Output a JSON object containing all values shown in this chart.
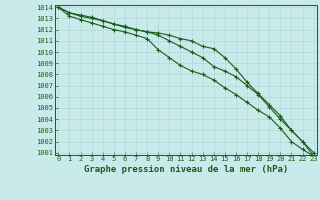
{
  "x": [
    0,
    1,
    2,
    3,
    4,
    5,
    6,
    7,
    8,
    9,
    10,
    11,
    12,
    13,
    14,
    15,
    16,
    17,
    18,
    19,
    20,
    21,
    22,
    23
  ],
  "series": [
    [
      1014,
      1013.5,
      1013.2,
      1013.0,
      1012.8,
      1012.5,
      1012.3,
      1012.0,
      1011.8,
      1011.5,
      1011.0,
      1010.5,
      1010.0,
      1009.5,
      1008.7,
      1008.3,
      1007.8,
      1007.0,
      1006.2,
      1005.1,
      1004.0,
      1003.0,
      1002.0,
      1001.0
    ],
    [
      1014,
      1013.2,
      1012.9,
      1012.6,
      1012.3,
      1012.0,
      1011.8,
      1011.5,
      1011.2,
      1010.2,
      1009.5,
      1008.8,
      1008.3,
      1008.0,
      1007.5,
      1006.8,
      1006.2,
      1005.5,
      1004.8,
      1004.2,
      1003.2,
      1002.0,
      1001.3,
      1000.7
    ],
    [
      1014,
      1013.5,
      1013.3,
      1013.1,
      1012.8,
      1012.5,
      1012.2,
      1012.0,
      1011.8,
      1011.7,
      1011.5,
      1011.2,
      1011.0,
      1010.5,
      1010.3,
      1009.5,
      1008.5,
      1007.3,
      1006.3,
      1005.3,
      1004.3,
      1003.0,
      1002.0,
      1000.7
    ]
  ],
  "ylim_min": 1001,
  "ylim_max": 1014,
  "yticks": [
    1001,
    1002,
    1003,
    1004,
    1005,
    1006,
    1007,
    1008,
    1009,
    1010,
    1011,
    1012,
    1013,
    1014
  ],
  "xticks": [
    0,
    1,
    2,
    3,
    4,
    5,
    6,
    7,
    8,
    9,
    10,
    11,
    12,
    13,
    14,
    15,
    16,
    17,
    18,
    19,
    20,
    21,
    22,
    23
  ],
  "line_color": "#1a5c1a",
  "bg_color": "#c8eaea",
  "grid_color": "#b0d8d8",
  "xlabel": "Graphe pression niveau de la mer (hPa)",
  "marker": "+",
  "marker_size": 3,
  "tick_fontsize": 5,
  "xlabel_fontsize": 6.5,
  "linewidth": 0.8
}
